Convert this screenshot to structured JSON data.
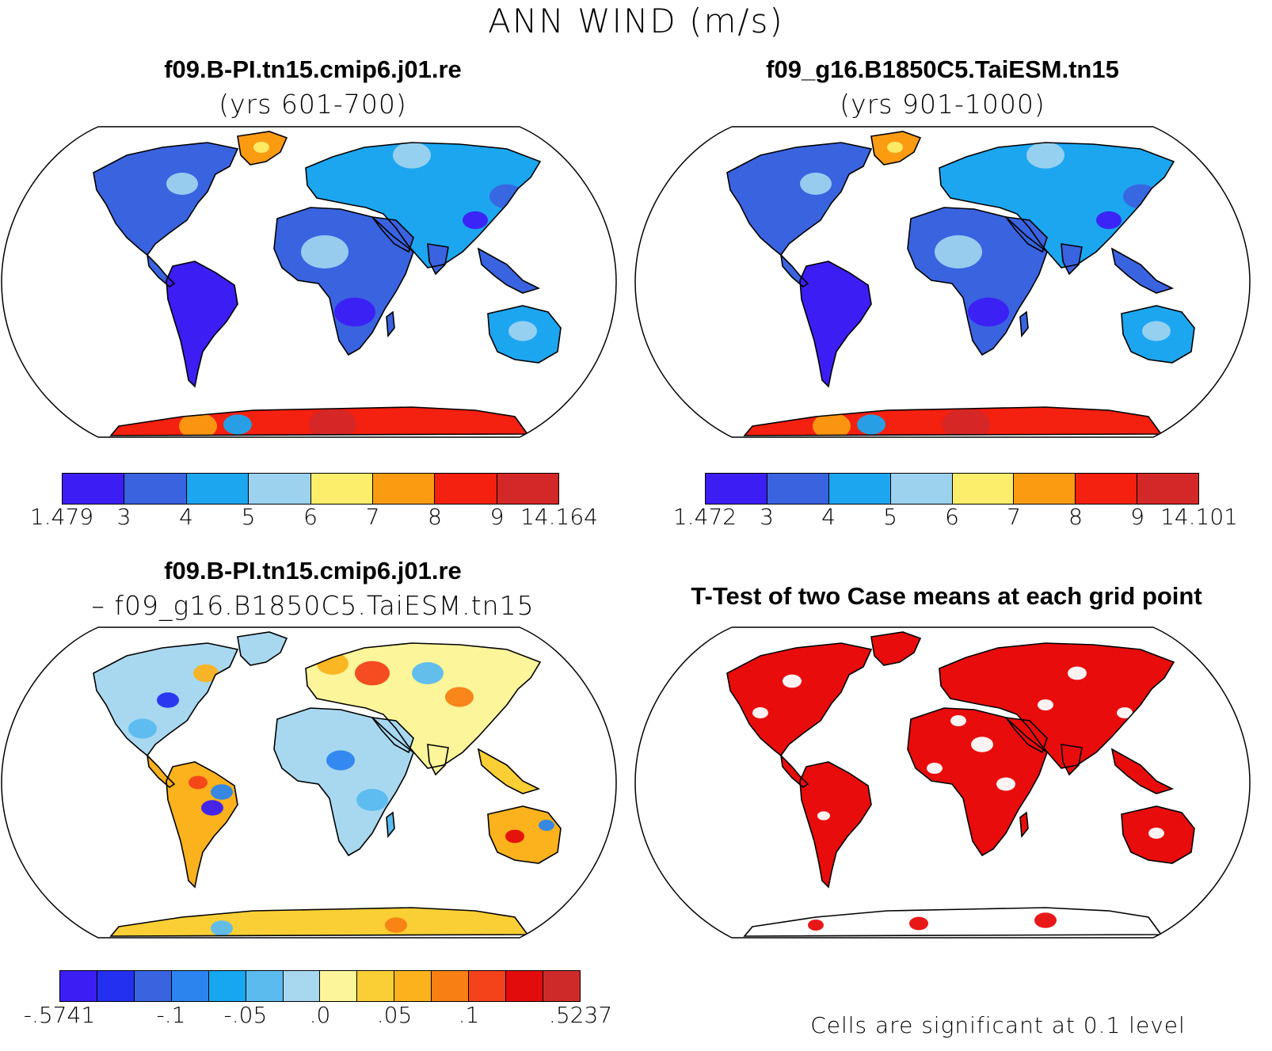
{
  "title": "ANN WIND (m/s)",
  "panels": {
    "top_left": {
      "title": "f09.B-PI.tn15.cmip6.j01.re",
      "subtitle": "(yrs 601-700)"
    },
    "top_right": {
      "title": "f09_g16.B1850C5.TaiESM.tn15",
      "subtitle": "(yrs 901-1000)"
    },
    "bottom_left": {
      "title": "f09.B-PI.tn15.cmip6.j01.re",
      "subtitle": "– f09_g16.B1850C5.TaiESM.tn15"
    },
    "bottom_right": {
      "title": "T-Test of two Case means at each grid point"
    }
  },
  "colorbars": {
    "top_left": {
      "colors": [
        "#3c1ef5",
        "#3a63e0",
        "#1ca6f0",
        "#9dd2ef",
        "#fcee6a",
        "#fa9b12",
        "#f42010",
        "#d42828"
      ],
      "labels": [
        "1.479",
        "3",
        "4",
        "5",
        "6",
        "7",
        "8",
        "9",
        "14.164"
      ]
    },
    "top_right": {
      "colors": [
        "#3c1ef5",
        "#3a63e0",
        "#1ca6f0",
        "#9dd2ef",
        "#fcee6a",
        "#fa9b12",
        "#f42010",
        "#d42828"
      ],
      "labels": [
        "1.472",
        "3",
        "4",
        "5",
        "6",
        "7",
        "8",
        "9",
        "14.101"
      ]
    },
    "bottom_left": {
      "colors": [
        "#3c1ef5",
        "#2330ef",
        "#3a63e0",
        "#2c85ee",
        "#17a6f0",
        "#5bbbef",
        "#a8d8f0",
        "#fdf59a",
        "#f9cf35",
        "#fbb21c",
        "#f87f14",
        "#f4421a",
        "#e30c0c",
        "#cf2a2a"
      ],
      "labels": [
        "-.5741",
        "-.1",
        "-.05",
        ".0",
        ".05",
        ".1",
        ".5237"
      ]
    }
  },
  "note": "Cells are significant at 0.1 level"
}
